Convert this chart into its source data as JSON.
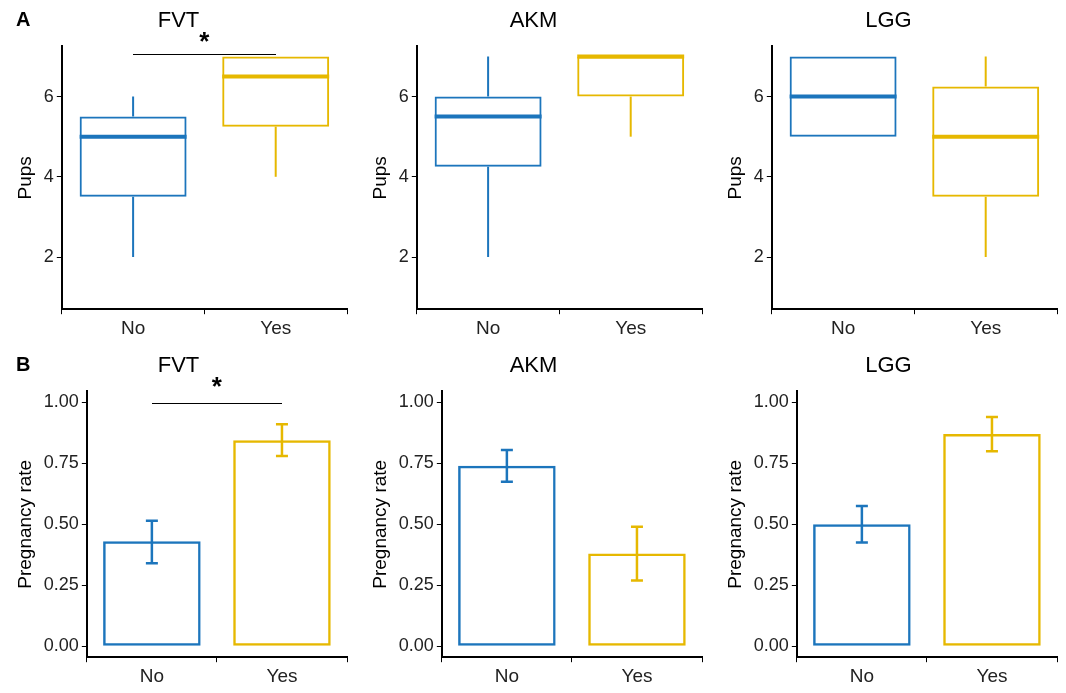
{
  "chart_data": [
    {
      "type": "box",
      "title": "FVT",
      "ylabel": "Pups",
      "categories": [
        "No",
        "Yes"
      ],
      "colors": [
        "#1c75bc",
        "#e6b800"
      ],
      "boxes": [
        {
          "low": 2,
          "q1": 3.5,
          "median": 5,
          "q3": 5.5,
          "high": 6
        },
        {
          "low": 4,
          "q1": 5.25,
          "median": 6.5,
          "q3": 7,
          "high": 7
        }
      ],
      "ylim": [
        0.7,
        7.25
      ],
      "yticks": [
        2,
        4,
        6
      ],
      "grid": false,
      "legend": false,
      "annotations": [
        "A",
        "*"
      ]
    },
    {
      "type": "box",
      "title": "AKM",
      "ylabel": "Pups",
      "categories": [
        "No",
        "Yes"
      ],
      "colors": [
        "#1c75bc",
        "#e6b800"
      ],
      "boxes": [
        {
          "low": 2,
          "q1": 4.25,
          "median": 5.5,
          "q3": 6,
          "high": 7
        },
        {
          "low": 5,
          "q1": 6,
          "median": 7,
          "q3": 7,
          "high": 7
        }
      ],
      "ylim": [
        0.7,
        7.25
      ],
      "yticks": [
        2,
        4,
        6
      ],
      "grid": false,
      "legend": false
    },
    {
      "type": "box",
      "title": "LGG",
      "ylabel": "Pups",
      "categories": [
        "No",
        "Yes"
      ],
      "colors": [
        "#1c75bc",
        "#e6b800"
      ],
      "boxes": [
        {
          "low": 5,
          "q1": 5,
          "median": 6,
          "q3": 7,
          "high": 7
        },
        {
          "low": 2,
          "q1": 3.5,
          "median": 5,
          "q3": 6.25,
          "high": 7
        }
      ],
      "ylim": [
        0.7,
        7.25
      ],
      "yticks": [
        2,
        4,
        6
      ],
      "grid": false,
      "legend": false
    },
    {
      "type": "bar",
      "title": "FVT",
      "ylabel": "Pregnancy rate",
      "categories": [
        "No",
        "Yes"
      ],
      "colors": [
        "#1c75bc",
        "#e6b800"
      ],
      "values": [
        0.43,
        0.845
      ],
      "errors": [
        [
          0.34,
          0.515
        ],
        [
          0.78,
          0.91
        ]
      ],
      "ylim": [
        -0.045,
        1.045
      ],
      "yticks": [
        {
          "value": 0,
          "label": "0.00"
        },
        {
          "value": 0.25,
          "label": "0.25"
        },
        {
          "value": 0.5,
          "label": "0.50"
        },
        {
          "value": 0.75,
          "label": "0.75"
        },
        {
          "value": 1,
          "label": "1.00"
        }
      ],
      "grid": false,
      "legend": false,
      "annotations": [
        "B",
        "*"
      ]
    },
    {
      "type": "bar",
      "title": "AKM",
      "ylabel": "Pregnancy rate",
      "categories": [
        "No",
        "Yes"
      ],
      "colors": [
        "#1c75bc",
        "#e6b800"
      ],
      "values": [
        0.74,
        0.38
      ],
      "errors": [
        [
          0.675,
          0.805
        ],
        [
          0.27,
          0.49
        ]
      ],
      "ylim": [
        -0.045,
        1.045
      ],
      "yticks": [
        {
          "value": 0,
          "label": "0.00"
        },
        {
          "value": 0.25,
          "label": "0.25"
        },
        {
          "value": 0.5,
          "label": "0.50"
        },
        {
          "value": 0.75,
          "label": "0.75"
        },
        {
          "value": 1,
          "label": "1.00"
        }
      ],
      "grid": false,
      "legend": false
    },
    {
      "type": "bar",
      "title": "LGG",
      "ylabel": "Pregnancy rate",
      "categories": [
        "No",
        "Yes"
      ],
      "colors": [
        "#1c75bc",
        "#e6b800"
      ],
      "values": [
        0.5,
        0.87
      ],
      "errors": [
        [
          0.425,
          0.575
        ],
        [
          0.8,
          0.94
        ]
      ],
      "ylim": [
        -0.045,
        1.045
      ],
      "yticks": [
        {
          "value": 0,
          "label": "0.00"
        },
        {
          "value": 0.25,
          "label": "0.25"
        },
        {
          "value": 0.5,
          "label": "0.50"
        },
        {
          "value": 0.75,
          "label": "0.75"
        },
        {
          "value": 1,
          "label": "1.00"
        }
      ],
      "grid": false,
      "legend": false
    }
  ]
}
